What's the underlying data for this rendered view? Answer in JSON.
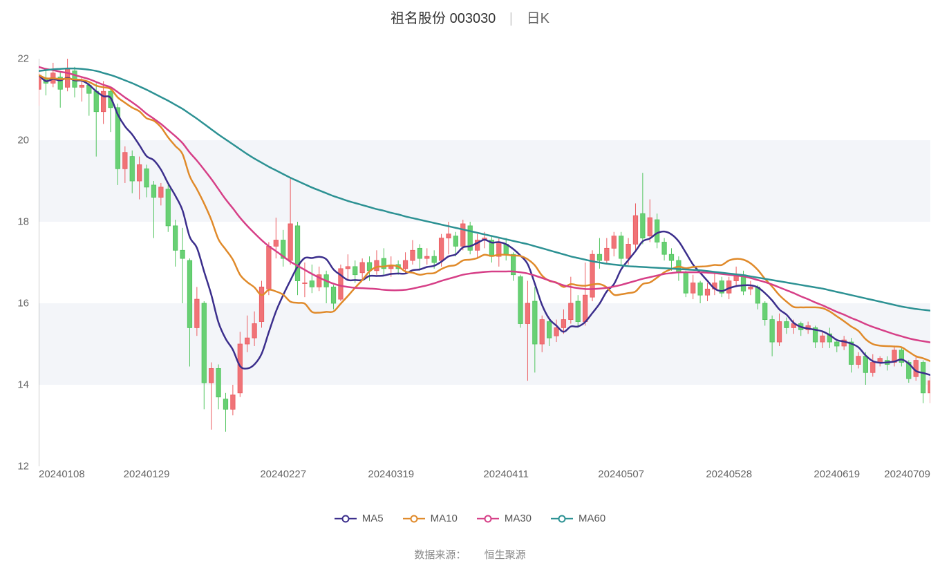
{
  "title": {
    "name": "祖名股份 003030",
    "separator": "|",
    "type": "日K"
  },
  "source": {
    "label": "数据来源：",
    "value": "恒生聚源"
  },
  "colors": {
    "background": "#ffffff",
    "band": "#f3f5f9",
    "axis": "#999999",
    "axis_label": "#666666",
    "up_fill": "#f07377",
    "up_border": "#eb5a5f",
    "down_fill": "#68d074",
    "down_border": "#4fc45d",
    "ma5": "#3b2e8c",
    "ma10": "#e08a2a",
    "ma30": "#d63f87",
    "ma60": "#2c9193"
  },
  "chart": {
    "type": "candlestick",
    "ylim": [
      12,
      22
    ],
    "yticks": [
      12,
      14,
      16,
      18,
      20,
      22
    ],
    "xticks": [
      {
        "idx": 0,
        "label": "20240108"
      },
      {
        "idx": 15,
        "label": "20240129"
      },
      {
        "idx": 34,
        "label": "20240227"
      },
      {
        "idx": 49,
        "label": "20240319"
      },
      {
        "idx": 65,
        "label": "20240411"
      },
      {
        "idx": 81,
        "label": "20240507"
      },
      {
        "idx": 96,
        "label": "20240528"
      },
      {
        "idx": 111,
        "label": "20240619"
      },
      {
        "idx": 124,
        "label": "20240709"
      }
    ],
    "n": 125,
    "line_width": 2.5,
    "legend": [
      {
        "key": "ma5",
        "label": "MA5",
        "color": "#3b2e8c"
      },
      {
        "key": "ma10",
        "label": "MA10",
        "color": "#e08a2a"
      },
      {
        "key": "ma30",
        "label": "MA30",
        "color": "#d63f87"
      },
      {
        "key": "ma60",
        "label": "MA60",
        "color": "#2c9193"
      }
    ],
    "candles": [
      {
        "o": 21.25,
        "c": 21.6,
        "h": 21.7,
        "l": 20.85
      },
      {
        "o": 21.5,
        "c": 21.4,
        "h": 21.75,
        "l": 21.1
      },
      {
        "o": 21.4,
        "c": 21.65,
        "h": 21.9,
        "l": 21.3
      },
      {
        "o": 21.55,
        "c": 21.25,
        "h": 21.7,
        "l": 20.8
      },
      {
        "o": 21.3,
        "c": 21.75,
        "h": 22.05,
        "l": 21.2
      },
      {
        "o": 21.7,
        "c": 21.3,
        "h": 21.8,
        "l": 21.05
      },
      {
        "o": 21.3,
        "c": 21.35,
        "h": 21.55,
        "l": 20.95
      },
      {
        "o": 21.35,
        "c": 21.15,
        "h": 21.45,
        "l": 20.6
      },
      {
        "o": 21.2,
        "c": 20.7,
        "h": 21.4,
        "l": 19.6
      },
      {
        "o": 20.7,
        "c": 21.2,
        "h": 21.45,
        "l": 20.4
      },
      {
        "o": 21.2,
        "c": 20.8,
        "h": 21.25,
        "l": 20.2
      },
      {
        "o": 20.8,
        "c": 19.3,
        "h": 20.9,
        "l": 18.9
      },
      {
        "o": 19.3,
        "c": 19.7,
        "h": 19.85,
        "l": 18.95
      },
      {
        "o": 19.6,
        "c": 19.0,
        "h": 19.75,
        "l": 18.7
      },
      {
        "o": 19.0,
        "c": 19.4,
        "h": 19.6,
        "l": 18.55
      },
      {
        "o": 19.3,
        "c": 18.85,
        "h": 19.4,
        "l": 18.6
      },
      {
        "o": 18.9,
        "c": 18.6,
        "h": 19.0,
        "l": 17.6
      },
      {
        "o": 18.6,
        "c": 18.85,
        "h": 18.95,
        "l": 18.4
      },
      {
        "o": 18.8,
        "c": 17.9,
        "h": 18.9,
        "l": 17.75
      },
      {
        "o": 17.9,
        "c": 17.3,
        "h": 18.05,
        "l": 16.9
      },
      {
        "o": 17.3,
        "c": 17.1,
        "h": 17.85,
        "l": 16.0
      },
      {
        "o": 17.05,
        "c": 15.4,
        "h": 17.1,
        "l": 14.45
      },
      {
        "o": 15.4,
        "c": 16.1,
        "h": 16.4,
        "l": 15.2
      },
      {
        "o": 16.0,
        "c": 14.05,
        "h": 16.05,
        "l": 13.4
      },
      {
        "o": 14.05,
        "c": 14.4,
        "h": 14.55,
        "l": 12.9
      },
      {
        "o": 14.4,
        "c": 13.7,
        "h": 14.5,
        "l": 13.4
      },
      {
        "o": 13.65,
        "c": 13.4,
        "h": 13.8,
        "l": 12.85
      },
      {
        "o": 13.4,
        "c": 13.75,
        "h": 14.0,
        "l": 13.25
      },
      {
        "o": 13.8,
        "c": 15.0,
        "h": 15.3,
        "l": 13.7
      },
      {
        "o": 15.0,
        "c": 15.15,
        "h": 15.7,
        "l": 14.8
      },
      {
        "o": 15.15,
        "c": 15.5,
        "h": 15.8,
        "l": 14.95
      },
      {
        "o": 15.55,
        "c": 16.4,
        "h": 16.55,
        "l": 15.4
      },
      {
        "o": 16.35,
        "c": 17.4,
        "h": 17.5,
        "l": 16.2
      },
      {
        "o": 17.4,
        "c": 17.55,
        "h": 18.1,
        "l": 17.1
      },
      {
        "o": 17.55,
        "c": 17.1,
        "h": 17.8,
        "l": 16.9
      },
      {
        "o": 17.05,
        "c": 17.95,
        "h": 19.1,
        "l": 16.95
      },
      {
        "o": 17.9,
        "c": 16.55,
        "h": 18.0,
        "l": 16.2
      },
      {
        "o": 16.5,
        "c": 16.5,
        "h": 17.0,
        "l": 16.15
      },
      {
        "o": 16.55,
        "c": 16.4,
        "h": 16.95,
        "l": 16.25
      },
      {
        "o": 16.4,
        "c": 16.7,
        "h": 16.9,
        "l": 16.3
      },
      {
        "o": 16.7,
        "c": 16.4,
        "h": 16.8,
        "l": 16.0
      },
      {
        "o": 16.4,
        "c": 16.0,
        "h": 16.45,
        "l": 15.85
      },
      {
        "o": 16.1,
        "c": 16.85,
        "h": 16.95,
        "l": 16.05
      },
      {
        "o": 16.85,
        "c": 16.9,
        "h": 17.2,
        "l": 16.55
      },
      {
        "o": 16.9,
        "c": 16.7,
        "h": 17.05,
        "l": 16.5
      },
      {
        "o": 16.75,
        "c": 17.0,
        "h": 17.1,
        "l": 16.6
      },
      {
        "o": 17.0,
        "c": 16.8,
        "h": 17.15,
        "l": 16.55
      },
      {
        "o": 16.8,
        "c": 17.05,
        "h": 17.3,
        "l": 16.7
      },
      {
        "o": 17.1,
        "c": 16.85,
        "h": 17.35,
        "l": 16.7
      },
      {
        "o": 16.85,
        "c": 16.9,
        "h": 17.15,
        "l": 16.65
      },
      {
        "o": 16.95,
        "c": 16.85,
        "h": 17.05,
        "l": 16.7
      },
      {
        "o": 16.85,
        "c": 17.05,
        "h": 17.25,
        "l": 16.75
      },
      {
        "o": 17.05,
        "c": 17.3,
        "h": 17.55,
        "l": 16.95
      },
      {
        "o": 17.35,
        "c": 17.1,
        "h": 17.45,
        "l": 16.8
      },
      {
        "o": 17.1,
        "c": 17.15,
        "h": 17.35,
        "l": 16.95
      },
      {
        "o": 17.15,
        "c": 17.0,
        "h": 17.3,
        "l": 16.85
      },
      {
        "o": 17.05,
        "c": 17.6,
        "h": 17.7,
        "l": 16.9
      },
      {
        "o": 17.6,
        "c": 17.7,
        "h": 18.0,
        "l": 17.2
      },
      {
        "o": 17.65,
        "c": 17.4,
        "h": 17.75,
        "l": 17.15
      },
      {
        "o": 17.4,
        "c": 17.95,
        "h": 18.05,
        "l": 17.3
      },
      {
        "o": 17.9,
        "c": 17.3,
        "h": 18.0,
        "l": 17.2
      },
      {
        "o": 17.3,
        "c": 17.55,
        "h": 17.7,
        "l": 17.1
      },
      {
        "o": 17.55,
        "c": 17.6,
        "h": 17.75,
        "l": 17.35
      },
      {
        "o": 17.55,
        "c": 17.15,
        "h": 17.65,
        "l": 17.0
      },
      {
        "o": 17.15,
        "c": 17.5,
        "h": 17.6,
        "l": 16.9
      },
      {
        "o": 17.45,
        "c": 17.2,
        "h": 17.6,
        "l": 17.05
      },
      {
        "o": 17.2,
        "c": 16.7,
        "h": 17.25,
        "l": 16.55
      },
      {
        "o": 16.65,
        "c": 15.5,
        "h": 16.7,
        "l": 15.4
      },
      {
        "o": 15.5,
        "c": 16.0,
        "h": 16.55,
        "l": 14.1
      },
      {
        "o": 16.05,
        "c": 15.0,
        "h": 16.4,
        "l": 14.3
      },
      {
        "o": 15.0,
        "c": 15.6,
        "h": 15.7,
        "l": 14.8
      },
      {
        "o": 15.55,
        "c": 15.15,
        "h": 15.65,
        "l": 14.95
      },
      {
        "o": 15.2,
        "c": 15.4,
        "h": 15.6,
        "l": 15.05
      },
      {
        "o": 15.4,
        "c": 15.6,
        "h": 15.85,
        "l": 15.25
      },
      {
        "o": 15.6,
        "c": 16.0,
        "h": 16.65,
        "l": 15.5
      },
      {
        "o": 16.05,
        "c": 15.55,
        "h": 16.2,
        "l": 15.4
      },
      {
        "o": 15.55,
        "c": 16.2,
        "h": 17.0,
        "l": 15.45
      },
      {
        "o": 16.15,
        "c": 17.2,
        "h": 17.3,
        "l": 16.05
      },
      {
        "o": 17.2,
        "c": 17.05,
        "h": 17.6,
        "l": 16.85
      },
      {
        "o": 17.05,
        "c": 17.35,
        "h": 17.6,
        "l": 16.95
      },
      {
        "o": 17.35,
        "c": 17.65,
        "h": 17.75,
        "l": 17.15
      },
      {
        "o": 17.65,
        "c": 17.1,
        "h": 17.75,
        "l": 16.95
      },
      {
        "o": 17.1,
        "c": 17.45,
        "h": 17.6,
        "l": 16.95
      },
      {
        "o": 17.45,
        "c": 18.15,
        "h": 18.45,
        "l": 17.3
      },
      {
        "o": 18.2,
        "c": 17.6,
        "h": 19.2,
        "l": 17.45
      },
      {
        "o": 17.65,
        "c": 18.1,
        "h": 18.55,
        "l": 17.5
      },
      {
        "o": 18.05,
        "c": 17.5,
        "h": 18.2,
        "l": 17.35
      },
      {
        "o": 17.5,
        "c": 17.2,
        "h": 17.6,
        "l": 17.05
      },
      {
        "o": 17.2,
        "c": 17.05,
        "h": 17.35,
        "l": 16.8
      },
      {
        "o": 17.05,
        "c": 16.75,
        "h": 17.15,
        "l": 16.55
      },
      {
        "o": 16.75,
        "c": 16.25,
        "h": 16.8,
        "l": 16.15
      },
      {
        "o": 16.25,
        "c": 16.5,
        "h": 16.7,
        "l": 16.1
      },
      {
        "o": 16.5,
        "c": 16.2,
        "h": 16.55,
        "l": 16.0
      },
      {
        "o": 16.2,
        "c": 16.35,
        "h": 16.5,
        "l": 16.05
      },
      {
        "o": 16.35,
        "c": 16.5,
        "h": 16.75,
        "l": 16.2
      },
      {
        "o": 16.55,
        "c": 16.25,
        "h": 16.65,
        "l": 16.15
      },
      {
        "o": 16.25,
        "c": 16.55,
        "h": 16.65,
        "l": 16.1
      },
      {
        "o": 16.55,
        "c": 16.7,
        "h": 16.9,
        "l": 16.4
      },
      {
        "o": 16.7,
        "c": 16.3,
        "h": 16.8,
        "l": 16.2
      },
      {
        "o": 16.35,
        "c": 16.4,
        "h": 16.55,
        "l": 16.2
      },
      {
        "o": 16.4,
        "c": 16.0,
        "h": 16.45,
        "l": 15.85
      },
      {
        "o": 16.0,
        "c": 15.6,
        "h": 16.05,
        "l": 15.45
      },
      {
        "o": 15.6,
        "c": 15.05,
        "h": 15.7,
        "l": 14.7
      },
      {
        "o": 15.05,
        "c": 15.55,
        "h": 15.75,
        "l": 14.95
      },
      {
        "o": 15.55,
        "c": 15.4,
        "h": 15.65,
        "l": 15.25
      },
      {
        "o": 15.4,
        "c": 15.5,
        "h": 15.6,
        "l": 15.25
      },
      {
        "o": 15.5,
        "c": 15.35,
        "h": 15.55,
        "l": 15.2
      },
      {
        "o": 15.35,
        "c": 15.45,
        "h": 15.55,
        "l": 15.25
      },
      {
        "o": 15.4,
        "c": 15.05,
        "h": 15.45,
        "l": 14.9
      },
      {
        "o": 15.05,
        "c": 15.2,
        "h": 15.3,
        "l": 14.9
      },
      {
        "o": 15.25,
        "c": 15.05,
        "h": 15.4,
        "l": 14.9
      },
      {
        "o": 15.05,
        "c": 14.95,
        "h": 15.1,
        "l": 14.8
      },
      {
        "o": 14.95,
        "c": 15.1,
        "h": 15.2,
        "l": 14.85
      },
      {
        "o": 15.05,
        "c": 14.5,
        "h": 15.15,
        "l": 14.3
      },
      {
        "o": 14.5,
        "c": 14.7,
        "h": 14.8,
        "l": 14.4
      },
      {
        "o": 14.7,
        "c": 14.3,
        "h": 14.8,
        "l": 14.0
      },
      {
        "o": 14.3,
        "c": 14.55,
        "h": 14.75,
        "l": 14.2
      },
      {
        "o": 14.55,
        "c": 14.65,
        "h": 14.7,
        "l": 14.45
      },
      {
        "o": 14.6,
        "c": 14.5,
        "h": 14.7,
        "l": 14.35
      },
      {
        "o": 14.55,
        "c": 14.85,
        "h": 14.95,
        "l": 14.45
      },
      {
        "o": 14.85,
        "c": 14.55,
        "h": 14.9,
        "l": 14.45
      },
      {
        "o": 14.55,
        "c": 14.15,
        "h": 14.6,
        "l": 14.05
      },
      {
        "o": 14.2,
        "c": 14.6,
        "h": 14.7,
        "l": 14.1
      },
      {
        "o": 14.55,
        "c": 13.8,
        "h": 14.6,
        "l": 13.55
      },
      {
        "o": 13.8,
        "c": 14.1,
        "h": 14.2,
        "l": 13.55
      }
    ],
    "ma5": [
      21.6,
      21.45,
      21.5,
      21.47,
      21.53,
      21.47,
      21.46,
      21.36,
      21.2,
      21.08,
      21.04,
      20.63,
      20.34,
      20.14,
      19.88,
      19.61,
      19.51,
      19.28,
      18.94,
      18.64,
      18.28,
      17.63,
      17.36,
      16.78,
      16.21,
      15.53,
      15.13,
      14.86,
      14.46,
      14.4,
      14.5,
      14.76,
      15.29,
      15.8,
      16.2,
      16.56,
      16.9,
      17.11,
      17.11,
      17.14,
      17.08,
      16.83,
      16.69,
      16.57,
      16.57,
      16.57,
      16.67,
      16.67,
      16.68,
      16.72,
      16.73,
      16.73,
      16.81,
      16.83,
      16.89,
      16.92,
      17.02,
      17.15,
      17.2,
      17.37,
      17.4,
      17.48,
      17.56,
      17.49,
      17.5,
      17.45,
      17.33,
      17.17,
      16.96,
      16.48,
      15.96,
      15.62,
      15.45,
      15.3,
      15.43,
      15.43,
      15.54,
      15.76,
      15.99,
      16.29,
      16.47,
      16.83,
      17.06,
      17.28,
      17.52,
      17.59,
      17.72,
      17.76,
      17.69,
      17.52,
      17.24,
      16.95,
      16.75,
      16.55,
      16.36,
      16.3,
      16.37,
      16.42,
      16.44,
      16.44,
      16.39,
      16.25,
      16.07,
      15.85,
      15.72,
      15.52,
      15.42,
      15.38,
      15.35,
      15.31,
      15.22,
      15.1,
      15.06,
      15.01,
      14.92,
      14.72,
      14.58,
      14.54,
      14.55,
      14.57,
      14.62,
      14.52,
      14.34,
      14.29,
      14.24
    ],
    "ma10": [
      21.6,
      21.52,
      21.52,
      21.5,
      21.51,
      21.49,
      21.48,
      21.43,
      21.34,
      21.3,
      21.26,
      21.05,
      20.92,
      20.8,
      20.71,
      20.54,
      20.48,
      20.32,
      20.07,
      19.86,
      19.66,
      19.12,
      18.8,
      18.45,
      18.05,
      17.57,
      17.32,
      17.07,
      16.7,
      16.52,
      16.39,
      16.2,
      16.33,
      16.29,
      16.21,
      16.04,
      16.01,
      15.99,
      15.79,
      15.77,
      15.79,
      15.8,
      15.99,
      16.18,
      16.38,
      16.57,
      16.78,
      16.89,
      16.9,
      16.93,
      16.9,
      16.78,
      16.75,
      16.7,
      16.73,
      16.74,
      16.84,
      16.91,
      16.94,
      17.05,
      17.07,
      17.11,
      17.19,
      17.16,
      17.19,
      17.19,
      17.17,
      17.16,
      17.08,
      16.93,
      16.68,
      16.55,
      16.51,
      16.4,
      16.47,
      16.44,
      16.43,
      16.46,
      16.47,
      16.39,
      16.21,
      16.22,
      16.25,
      16.29,
      16.47,
      16.51,
      16.63,
      16.76,
      16.84,
      16.9,
      16.86,
      16.89,
      16.9,
      16.91,
      16.94,
      16.94,
      17.05,
      17.09,
      17.07,
      16.98,
      16.82,
      16.6,
      16.41,
      16.2,
      16.04,
      15.91,
      15.9,
      15.9,
      15.9,
      15.88,
      15.8,
      15.68,
      15.56,
      15.43,
      15.32,
      15.12,
      15.0,
      14.96,
      14.95,
      14.94,
      14.92,
      14.81,
      14.7,
      14.65,
      14.58
    ],
    "ma30": [
      21.8,
      21.75,
      21.72,
      21.68,
      21.65,
      21.6,
      21.55,
      21.5,
      21.43,
      21.36,
      21.3,
      21.18,
      21.05,
      20.93,
      20.8,
      20.65,
      20.53,
      20.4,
      20.25,
      20.1,
      19.93,
      19.7,
      19.5,
      19.28,
      19.05,
      18.8,
      18.55,
      18.33,
      18.1,
      17.9,
      17.72,
      17.55,
      17.4,
      17.28,
      17.15,
      17.02,
      16.92,
      16.82,
      16.72,
      16.63,
      16.55,
      16.48,
      16.43,
      16.4,
      16.38,
      16.37,
      16.36,
      16.35,
      16.33,
      16.32,
      16.32,
      16.33,
      16.36,
      16.4,
      16.44,
      16.49,
      16.55,
      16.6,
      16.65,
      16.7,
      16.73,
      16.75,
      16.77,
      16.78,
      16.78,
      16.78,
      16.78,
      16.76,
      16.73,
      16.68,
      16.62,
      16.56,
      16.5,
      16.44,
      16.4,
      16.37,
      16.35,
      16.35,
      16.36,
      16.38,
      16.41,
      16.45,
      16.5,
      16.55,
      16.6,
      16.64,
      16.68,
      16.72,
      16.74,
      16.76,
      16.76,
      16.76,
      16.76,
      16.75,
      16.74,
      16.72,
      16.7,
      16.68,
      16.66,
      16.62,
      16.57,
      16.52,
      16.46,
      16.39,
      16.32,
      16.25,
      16.17,
      16.1,
      16.02,
      15.95,
      15.87,
      15.79,
      15.72,
      15.64,
      15.57,
      15.49,
      15.42,
      15.36,
      15.3,
      15.24,
      15.19,
      15.14,
      15.1,
      15.07,
      15.04
    ],
    "ma60": [
      21.7,
      21.72,
      21.74,
      21.75,
      21.76,
      21.76,
      21.75,
      21.73,
      21.7,
      21.65,
      21.6,
      21.54,
      21.47,
      21.4,
      21.32,
      21.24,
      21.15,
      21.06,
      20.97,
      20.87,
      20.77,
      20.65,
      20.53,
      20.4,
      20.27,
      20.14,
      20.02,
      19.9,
      19.78,
      19.66,
      19.55,
      19.45,
      19.35,
      19.26,
      19.17,
      19.08,
      19.0,
      18.92,
      18.84,
      18.77,
      18.7,
      18.63,
      18.57,
      18.51,
      18.46,
      18.41,
      18.36,
      18.31,
      18.27,
      18.22,
      18.18,
      18.13,
      18.09,
      18.05,
      18.01,
      17.97,
      17.93,
      17.89,
      17.85,
      17.81,
      17.77,
      17.73,
      17.69,
      17.65,
      17.61,
      17.57,
      17.53,
      17.49,
      17.45,
      17.4,
      17.35,
      17.3,
      17.25,
      17.2,
      17.15,
      17.11,
      17.07,
      17.03,
      17.0,
      16.97,
      16.95,
      16.93,
      16.91,
      16.9,
      16.89,
      16.88,
      16.87,
      16.86,
      16.85,
      16.84,
      16.83,
      16.82,
      16.81,
      16.79,
      16.77,
      16.75,
      16.73,
      16.71,
      16.69,
      16.66,
      16.63,
      16.6,
      16.57,
      16.54,
      16.51,
      16.48,
      16.45,
      16.42,
      16.39,
      16.36,
      16.32,
      16.28,
      16.24,
      16.2,
      16.16,
      16.12,
      16.08,
      16.04,
      16.0,
      15.96,
      15.92,
      15.89,
      15.86,
      15.84,
      15.82
    ]
  }
}
